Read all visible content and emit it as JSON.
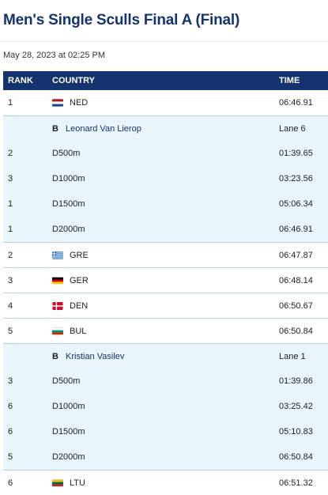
{
  "title": "Men's Single Sculls Final A (Final)",
  "date": "May 28, 2023 at 02:25 PM",
  "headers": {
    "rank": "RANK",
    "country": "COUNTRY",
    "time": "TIME"
  },
  "rows": [
    {
      "type": "country",
      "rank": "1",
      "code": "NED",
      "flag": "netherlands-flag",
      "time": "06:46.91"
    },
    {
      "type": "athlete",
      "b": "B",
      "name": "Leonard Van Lierop",
      "lane": "Lane 6"
    },
    {
      "type": "split",
      "rank": "2",
      "distance": "D500m",
      "time": "01:39.65"
    },
    {
      "type": "split",
      "rank": "3",
      "distance": "D1000m",
      "time": "03:23.56"
    },
    {
      "type": "split",
      "rank": "1",
      "distance": "D1500m",
      "time": "05:06.34"
    },
    {
      "type": "split",
      "rank": "1",
      "distance": "D2000m",
      "time": "06:46.91"
    },
    {
      "type": "country",
      "rank": "2",
      "code": "GRE",
      "flag": "greece-flag",
      "time": "06:47.87"
    },
    {
      "type": "country",
      "rank": "3",
      "code": "GER",
      "flag": "germany-flag",
      "time": "06:48.14"
    },
    {
      "type": "country",
      "rank": "4",
      "code": "DEN",
      "flag": "denmark-flag",
      "time": "06:50.67"
    },
    {
      "type": "country",
      "rank": "5",
      "code": "BUL",
      "flag": "bulgaria-flag",
      "time": "06:50.84"
    },
    {
      "type": "athlete",
      "b": "B",
      "name": "Kristian Vasilev",
      "lane": "Lane 1"
    },
    {
      "type": "split",
      "rank": "3",
      "distance": "D500m",
      "time": "01:39.86"
    },
    {
      "type": "split",
      "rank": "6",
      "distance": "D1000m",
      "time": "03:25.42"
    },
    {
      "type": "split",
      "rank": "6",
      "distance": "D1500m",
      "time": "05:10.83"
    },
    {
      "type": "split",
      "rank": "5",
      "distance": "D2000m",
      "time": "06:50.84"
    },
    {
      "type": "country",
      "rank": "6",
      "code": "LTU",
      "flag": "lithuania-flag",
      "time": "06:51.32"
    }
  ],
  "colors": {
    "header_bg": "#15336e",
    "title": "#15336e",
    "athlete_bg": "#eaf4fb"
  }
}
